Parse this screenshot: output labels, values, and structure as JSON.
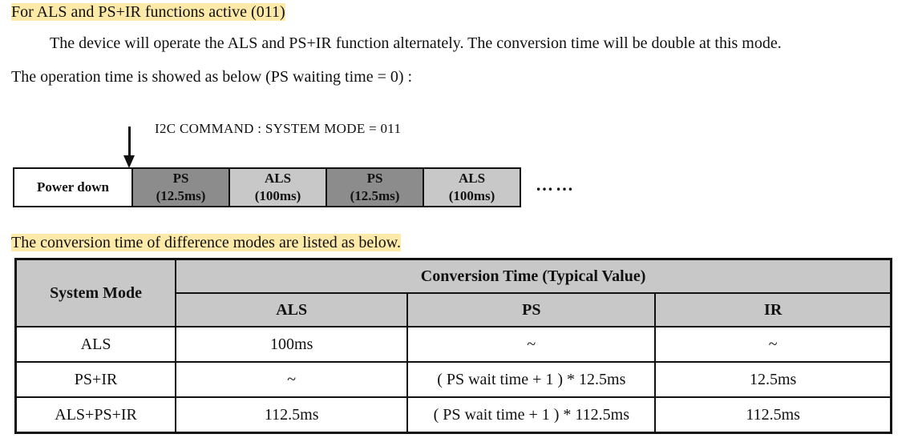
{
  "heading": "For ALS and PS+IR functions active (011)",
  "paragraph_line1": "The device will operate the ALS and PS+IR function alternately. The conversion time will be double at this mode.",
  "paragraph_line2": "The operation time is showed as below (PS waiting time = 0) :",
  "i2c_command": "I2C COMMAND : SYSTEM MODE = 011",
  "timeline": {
    "power_down": "Power down",
    "segments": [
      {
        "name": "PS",
        "time": "(12.5ms)"
      },
      {
        "name": "ALS",
        "time": "(100ms)"
      },
      {
        "name": "PS",
        "time": "(12.5ms)"
      },
      {
        "name": "ALS",
        "time": "(100ms)"
      }
    ],
    "continuation": "……"
  },
  "table_intro": "The conversion time of difference modes are listed as below.",
  "table": {
    "header_mode": "System Mode",
    "header_group": "Conversion Time (Typical Value)",
    "columns": [
      "ALS",
      "PS",
      "IR"
    ],
    "rows": [
      {
        "mode": "ALS",
        "als": "100ms",
        "ps": "~",
        "ir": "~"
      },
      {
        "mode": "PS+IR",
        "als": "~",
        "ps": "( PS wait time + 1 ) * 12.5ms",
        "ir": "12.5ms"
      },
      {
        "mode": "ALS+PS+IR",
        "als": "112.5ms",
        "ps": "( PS wait time + 1 ) * 112.5ms",
        "ir": "112.5ms"
      }
    ]
  },
  "colors": {
    "highlight": "#fde9a8",
    "ps_segment": "#8c8c8c",
    "als_segment": "#c8c8c8",
    "table_header": "#c8c8c8"
  }
}
